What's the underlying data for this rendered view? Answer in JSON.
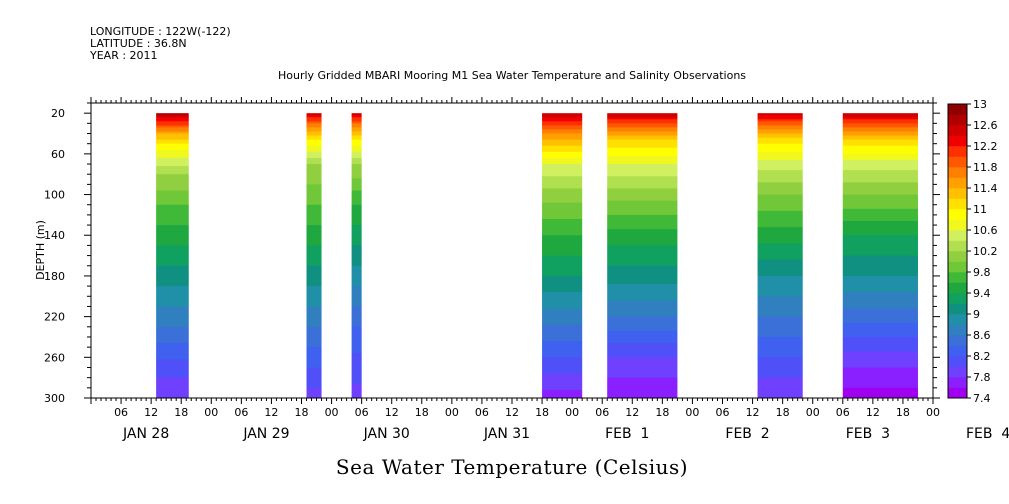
{
  "header": {
    "longitude": "LONGITUDE : 122W(-122)",
    "latitude": "LATITUDE : 36.8N",
    "year": "YEAR : 2011",
    "title": "Hourly Gridded MBARI Mooring M1 Sea Water Temperature and Salinity Observations"
  },
  "variable_title": "Sea Water Temperature (Celsius)",
  "chart_data": {
    "type": "heatmap",
    "title": "Hourly Gridded MBARI Mooring M1 Sea Water Temperature and Salinity Observations",
    "xlabel": "",
    "ylabel": "DEPTH (m)",
    "colorbar_label": "Sea Water Temperature (Celsius)",
    "x_hours_range": [
      0,
      168
    ],
    "x_hour_ticks": [
      "06",
      "12",
      "18",
      "00",
      "06",
      "12",
      "18",
      "00",
      "06",
      "12",
      "18",
      "00",
      "06",
      "12",
      "18",
      "00",
      "06",
      "12",
      "18",
      "00",
      "06",
      "12",
      "18",
      "00",
      "06",
      "12",
      "18",
      "00"
    ],
    "x_date_labels": [
      "JAN 28",
      "JAN 29",
      "JAN 30",
      "JAN 31",
      "FEB  1",
      "FEB  2",
      "FEB  3",
      "FEB  4"
    ],
    "y_ticks": [
      20,
      60,
      100,
      140,
      180,
      220,
      260,
      300
    ],
    "y_range": [
      300,
      10
    ],
    "data_depth_range": [
      20,
      300
    ],
    "colorbar_levels": [
      7.4,
      7.6,
      7.8,
      8.0,
      8.2,
      8.4,
      8.6,
      8.8,
      9.0,
      9.2,
      9.4,
      9.6,
      9.8,
      10.0,
      10.2,
      10.4,
      10.6,
      10.8,
      11.0,
      11.2,
      11.4,
      11.6,
      11.8,
      12.0,
      12.2,
      12.4,
      12.6,
      12.8,
      13.0
    ],
    "colorbar_tick_labels": [
      "13",
      "12.6",
      "12.2",
      "11.8",
      "11.4",
      "11",
      "10.6",
      "10.2",
      "9.8",
      "9.4",
      "9",
      "8.6",
      "8.2",
      "7.8",
      "7.4"
    ],
    "colors": [
      "#a000f0",
      "#8a20ff",
      "#7040ff",
      "#5050f8",
      "#4060f0",
      "#3a70d8",
      "#3080c0",
      "#2090a8",
      "#109080",
      "#10a060",
      "#20a840",
      "#40b838",
      "#70c838",
      "#90d040",
      "#b0e050",
      "#d0f060",
      "#f0f820",
      "#ffff00",
      "#ffe000",
      "#ffc000",
      "#ffa000",
      "#ff8000",
      "#ff5800",
      "#ff3000",
      "#f00000",
      "#d00000",
      "#b00000",
      "#900000"
    ],
    "segments": [
      {
        "start_hour": 13,
        "end_hour": 19.5,
        "profile": [
          [
            20,
            12.7
          ],
          [
            30,
            12.1
          ],
          [
            40,
            11.4
          ],
          [
            55,
            10.8
          ],
          [
            80,
            10.2
          ],
          [
            110,
            9.8
          ],
          [
            150,
            9.4
          ],
          [
            190,
            9.0
          ],
          [
            230,
            8.6
          ],
          [
            270,
            8.1
          ],
          [
            300,
            7.8
          ]
        ]
      },
      {
        "start_hour": 43,
        "end_hour": 46,
        "profile": [
          [
            20,
            12.5
          ],
          [
            30,
            11.8
          ],
          [
            45,
            11.0
          ],
          [
            70,
            10.2
          ],
          [
            110,
            9.8
          ],
          [
            150,
            9.4
          ],
          [
            190,
            9.0
          ],
          [
            230,
            8.6
          ],
          [
            270,
            8.2
          ],
          [
            300,
            7.9
          ]
        ]
      },
      {
        "start_hour": 52,
        "end_hour": 54,
        "profile": [
          [
            20,
            12.5
          ],
          [
            30,
            11.8
          ],
          [
            45,
            11.0
          ],
          [
            70,
            10.2
          ],
          [
            110,
            9.6
          ],
          [
            150,
            9.2
          ],
          [
            190,
            8.8
          ],
          [
            230,
            8.4
          ],
          [
            270,
            8.1
          ],
          [
            300,
            7.9
          ]
        ]
      },
      {
        "start_hour": 90,
        "end_hour": 98,
        "profile": [
          [
            20,
            12.6
          ],
          [
            30,
            12.1
          ],
          [
            45,
            11.4
          ],
          [
            70,
            10.6
          ],
          [
            100,
            10.1
          ],
          [
            140,
            9.6
          ],
          [
            180,
            9.2
          ],
          [
            220,
            8.7
          ],
          [
            260,
            8.2
          ],
          [
            300,
            7.7
          ]
        ]
      },
      {
        "start_hour": 103,
        "end_hour": 117,
        "profile": [
          [
            20,
            12.6
          ],
          [
            30,
            12.0
          ],
          [
            45,
            11.2
          ],
          [
            70,
            10.6
          ],
          [
            100,
            10.1
          ],
          [
            140,
            9.5
          ],
          [
            180,
            9.1
          ],
          [
            220,
            8.6
          ],
          [
            260,
            8.0
          ],
          [
            300,
            7.6
          ]
        ]
      },
      {
        "start_hour": 133,
        "end_hour": 142,
        "profile": [
          [
            20,
            12.5
          ],
          [
            30,
            11.9
          ],
          [
            45,
            11.1
          ],
          [
            70,
            10.5
          ],
          [
            100,
            10.0
          ],
          [
            140,
            9.5
          ],
          [
            180,
            9.0
          ],
          [
            220,
            8.6
          ],
          [
            260,
            8.2
          ],
          [
            300,
            7.8
          ]
        ]
      },
      {
        "start_hour": 150,
        "end_hour": 165,
        "profile": [
          [
            20,
            12.6
          ],
          [
            30,
            12.0
          ],
          [
            45,
            11.2
          ],
          [
            70,
            10.5
          ],
          [
            100,
            10.0
          ],
          [
            140,
            9.4
          ],
          [
            180,
            9.0
          ],
          [
            220,
            8.5
          ],
          [
            260,
            7.9
          ],
          [
            300,
            7.5
          ]
        ]
      }
    ]
  }
}
